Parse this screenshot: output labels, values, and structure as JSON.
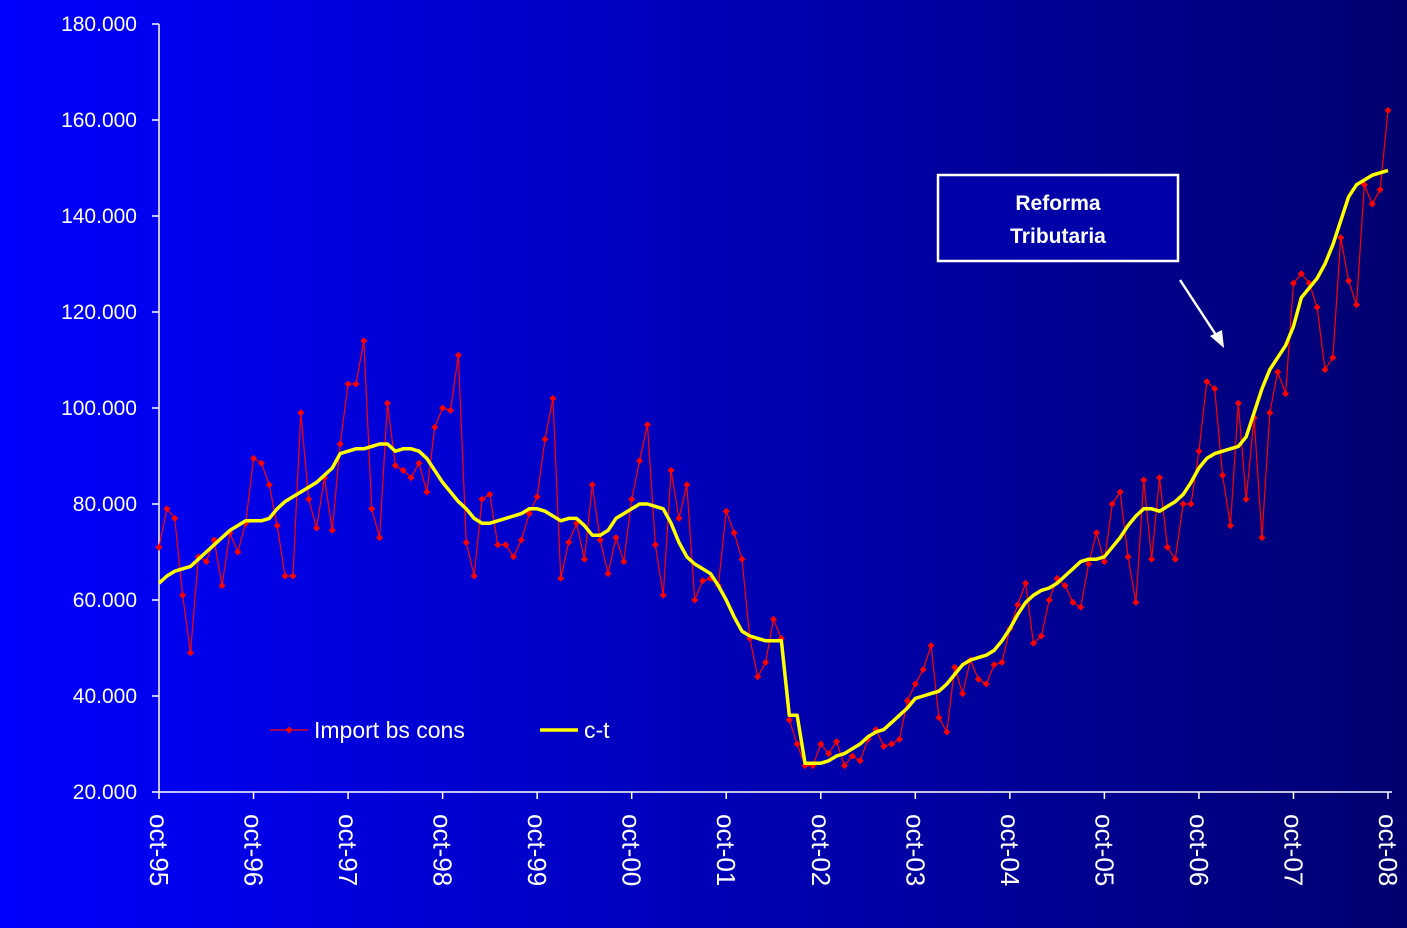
{
  "chart_data": {
    "type": "line",
    "categories": [
      "oct-95",
      null,
      null,
      null,
      null,
      null,
      null,
      null,
      null,
      null,
      null,
      null,
      "oct-96",
      null,
      null,
      null,
      null,
      null,
      null,
      null,
      null,
      null,
      null,
      null,
      "oct-97",
      null,
      null,
      null,
      null,
      null,
      null,
      null,
      null,
      null,
      null,
      null,
      "oct-98",
      null,
      null,
      null,
      null,
      null,
      null,
      null,
      null,
      null,
      null,
      null,
      "oct-99",
      null,
      null,
      null,
      null,
      null,
      null,
      null,
      null,
      null,
      null,
      null,
      "oct-00",
      null,
      null,
      null,
      null,
      null,
      null,
      null,
      null,
      null,
      null,
      null,
      "oct-01",
      null,
      null,
      null,
      null,
      null,
      null,
      null,
      null,
      null,
      null,
      null,
      "oct-02",
      null,
      null,
      null,
      null,
      null,
      null,
      null,
      null,
      null,
      null,
      null,
      "oct-03",
      null,
      null,
      null,
      null,
      null,
      null,
      null,
      null,
      null,
      null,
      null,
      "oct-04",
      null,
      null,
      null,
      null,
      null,
      null,
      null,
      null,
      null,
      null,
      null,
      "oct-05",
      null,
      null,
      null,
      null,
      null,
      null,
      null,
      null,
      null,
      null,
      null,
      "oct-06",
      null,
      null,
      null,
      null,
      null,
      null,
      null,
      null,
      null,
      null,
      null,
      "oct-07",
      null,
      null,
      null,
      null,
      null,
      null,
      null,
      null,
      null,
      null,
      null,
      "oct-08"
    ],
    "series": [
      {
        "name": "Import bs cons",
        "color": "#ff0000",
        "marker": true,
        "values": [
          71000,
          79000,
          77000,
          61000,
          49000,
          69000,
          68000,
          72500,
          63000,
          74000,
          70000,
          76000,
          89500,
          88500,
          84000,
          75500,
          65000,
          65000,
          99000,
          81000,
          75000,
          85500,
          74500,
          92500,
          105000,
          105000,
          114000,
          79000,
          73000,
          101000,
          88000,
          87000,
          85500,
          88500,
          82500,
          96000,
          100000,
          99500,
          111000,
          72000,
          65000,
          81000,
          82000,
          71500,
          71500,
          69000,
          72500,
          78000,
          81500,
          93500,
          102000,
          64500,
          72000,
          76000,
          68500,
          84000,
          72500,
          65500,
          73000,
          68000,
          81000,
          89000,
          96500,
          71500,
          61000,
          87000,
          77000,
          84000,
          60000,
          64000,
          64500,
          63000,
          78500,
          74000,
          68500,
          52000,
          44000,
          47000,
          56000,
          52000,
          35000,
          30000,
          25500,
          25500,
          30000,
          28000,
          30500,
          25500,
          27500,
          26500,
          31000,
          33000,
          29500,
          30000,
          31000,
          39000,
          42500,
          45500,
          50500,
          35500,
          32500,
          46000,
          40500,
          47500,
          43500,
          42500,
          46500,
          47000,
          54000,
          59000,
          63500,
          51000,
          52500,
          60000,
          64500,
          63000,
          59500,
          58500,
          67500,
          74000,
          68000,
          80000,
          82500,
          69000,
          59500,
          85000,
          68500,
          85500,
          71000,
          68500,
          80000,
          80000,
          91000,
          105500,
          104000,
          86000,
          75500,
          101000,
          81000,
          98000,
          73000,
          99000,
          107500,
          103000,
          126000,
          128000,
          126000,
          121000,
          108000,
          110500,
          135500,
          126500,
          121500,
          146500,
          142500,
          145500,
          162000
        ]
      },
      {
        "name": "c-t",
        "color": "#ffff00",
        "marker": false,
        "values": [
          63500,
          65000,
          66000,
          66500,
          67000,
          68500,
          70000,
          71500,
          73000,
          74500,
          75500,
          76500,
          76500,
          76500,
          77000,
          79000,
          80500,
          81500,
          82500,
          83500,
          84500,
          86000,
          87500,
          90500,
          91000,
          91500,
          91500,
          92000,
          92500,
          92500,
          91000,
          91500,
          91500,
          91000,
          89500,
          87000,
          84500,
          82500,
          80500,
          79000,
          77000,
          76000,
          76000,
          76500,
          77000,
          77500,
          78000,
          79000,
          79000,
          78500,
          77500,
          76500,
          77000,
          77000,
          75500,
          73500,
          73500,
          74500,
          77000,
          78000,
          79000,
          80000,
          80000,
          79500,
          79000,
          76000,
          72000,
          69000,
          67500,
          66500,
          65500,
          63000,
          60000,
          56500,
          53500,
          52500,
          52000,
          51500,
          51500,
          51500,
          36000,
          36000,
          26000,
          26000,
          26000,
          26500,
          27500,
          28000,
          29000,
          30000,
          31500,
          32500,
          33000,
          34500,
          36000,
          37500,
          39500,
          40000,
          40500,
          41000,
          42500,
          44500,
          46500,
          47500,
          48000,
          48500,
          49500,
          51500,
          54000,
          57000,
          59500,
          61000,
          62000,
          62500,
          63500,
          65000,
          66500,
          68000,
          68500,
          68500,
          69000,
          71000,
          73000,
          75500,
          77500,
          79000,
          79000,
          78500,
          79500,
          80500,
          82000,
          84500,
          87500,
          89500,
          90500,
          91000,
          91500,
          92000,
          94000,
          99000,
          104000,
          108000,
          110500,
          113000,
          117000,
          123000,
          125000,
          127000,
          130000,
          134000,
          139000,
          144000,
          146500,
          147500,
          148500,
          149000,
          149500
        ]
      }
    ],
    "ylim": [
      20000,
      180000
    ],
    "yticks": [
      {
        "value": 20000,
        "label": "20.000"
      },
      {
        "value": 40000,
        "label": "40.000"
      },
      {
        "value": 60000,
        "label": "60.000"
      },
      {
        "value": 80000,
        "label": "80.000"
      },
      {
        "value": 100000,
        "label": "100.000"
      },
      {
        "value": 120000,
        "label": "120.000"
      },
      {
        "value": 140000,
        "label": "140.000"
      },
      {
        "value": 160000,
        "label": "160.000"
      },
      {
        "value": 180000,
        "label": "180.000"
      }
    ],
    "legend": "lower-left",
    "annotation": [
      "Reforma",
      "Tributaria"
    ]
  }
}
